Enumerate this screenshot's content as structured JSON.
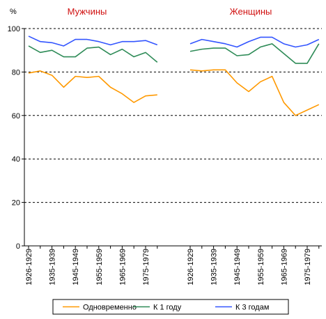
{
  "chart_data": {
    "type": "line",
    "y_unit_label": "%",
    "ylim": [
      0,
      100
    ],
    "yticks": [
      0,
      20,
      40,
      60,
      80,
      100
    ],
    "x_tick_labels": [
      "1926-1929",
      "1935-1939",
      "1945-1949",
      "1955-1959",
      "1965-1969",
      "1975-1979"
    ],
    "grid": "horizontal dashed",
    "legend_position": "bottom",
    "panels": [
      {
        "title": "Мужчины",
        "series": [
          {
            "name": "Одновременно",
            "color": "#ff9900",
            "values": [
              79.5,
              80.5,
              78.5,
              73,
              78,
              77.5,
              78,
              73,
              70,
              66,
              69,
              69.5
            ]
          },
          {
            "name": "К 1 году",
            "color": "#2e8b57",
            "values": [
              92,
              89,
              90,
              87,
              87,
              91,
              91.5,
              88,
              90.5,
              87,
              89,
              84.5
            ]
          },
          {
            "name": "К 3 годам",
            "color": "#3355ff",
            "values": [
              96.5,
              94,
              93.5,
              92,
              95,
              95,
              94,
              92.5,
              94,
              94,
              94.5,
              92.5
            ]
          }
        ]
      },
      {
        "title": "Женщины",
        "series": [
          {
            "name": "Одновременно",
            "color": "#ff9900",
            "values": [
              81,
              80.5,
              81,
              81,
              75,
              71,
              75.5,
              78,
              66,
              60,
              62.5,
              65
            ]
          },
          {
            "name": "К 1 году",
            "color": "#2e8b57",
            "values": [
              89.5,
              90.5,
              91,
              91,
              87.5,
              88,
              91.5,
              93,
              88.5,
              84,
              84,
              93
            ]
          },
          {
            "name": "К 3 годам",
            "color": "#3355ff",
            "values": [
              93,
              95,
              94,
              93,
              91.5,
              94,
              96,
              96,
              93,
              91.5,
              92.5,
              95
            ]
          }
        ]
      }
    ]
  }
}
